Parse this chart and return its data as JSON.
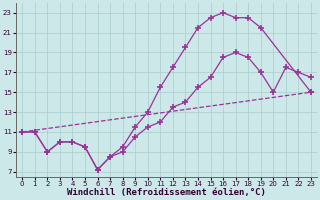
{
  "background_color": "#cce8e8",
  "grid_color": "#aacccc",
  "line_color": "#993399",
  "marker": "+",
  "marker_size": 4,
  "marker_linewidth": 1.2,
  "xlim": [
    -0.5,
    23.5
  ],
  "ylim": [
    6.5,
    24
  ],
  "yticks": [
    7,
    9,
    11,
    13,
    15,
    17,
    19,
    21,
    23
  ],
  "xticks": [
    0,
    1,
    2,
    3,
    4,
    5,
    6,
    7,
    8,
    9,
    10,
    11,
    12,
    13,
    14,
    15,
    16,
    17,
    18,
    19,
    20,
    21,
    22,
    23
  ],
  "xlabel": "Windchill (Refroidissement éolien,°C)",
  "xlabel_fontsize": 6.5,
  "tick_fontsize": 5.0,
  "series1_x": [
    0,
    1,
    2,
    3,
    4,
    5,
    6,
    7,
    8,
    9,
    10,
    11,
    12,
    13,
    14,
    15,
    16,
    17,
    18,
    19,
    20,
    21,
    22,
    23
  ],
  "series1_y": [
    11,
    11,
    9,
    10,
    10,
    9.5,
    7.2,
    8.5,
    9.0,
    10.5,
    11.5,
    12.0,
    13.5,
    14.0,
    15.5,
    16.5,
    18.5,
    19.0,
    18.5,
    17.0,
    15.0,
    17.5,
    17.0,
    16.5
  ],
  "series2_x": [
    0,
    1,
    2,
    3,
    4,
    5,
    6,
    7,
    8,
    9,
    10,
    11,
    12,
    13,
    14,
    15,
    16,
    17,
    18,
    20,
    23
  ],
  "series2_y": [
    11,
    11,
    9,
    10,
    10,
    9.5,
    7.2,
    8.5,
    9.5,
    11.5,
    13.0,
    15.5,
    17.5,
    19.5,
    21.5,
    22.5,
    23.0,
    22.5,
    22.5,
    null,
    null
  ],
  "series2_y_real": [
    11,
    11,
    9,
    10,
    10,
    9.5,
    7.2,
    8.5,
    9.5,
    11.5,
    13.0,
    15.5,
    17.5,
    19.5,
    21.5,
    22.5,
    23.0,
    22.5,
    22.5,
    21.5,
    15.0
  ],
  "series2_x_real": [
    0,
    1,
    2,
    3,
    4,
    5,
    6,
    7,
    8,
    9,
    10,
    11,
    12,
    13,
    14,
    15,
    16,
    17,
    18,
    19,
    23
  ],
  "series3_x": [
    0,
    23
  ],
  "series3_y": [
    11,
    15
  ],
  "linewidth": 0.9
}
